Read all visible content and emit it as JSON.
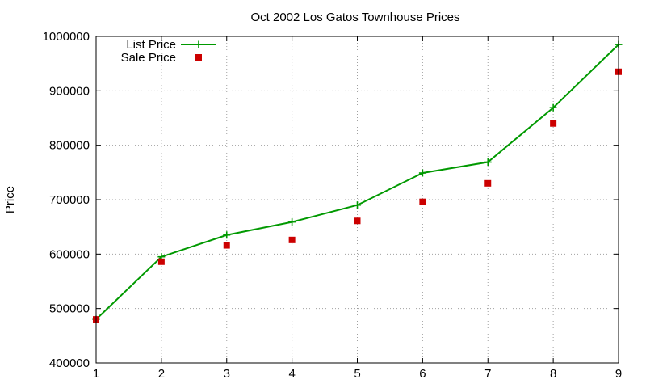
{
  "chart_data": {
    "type": "line",
    "title": "Oct 2002 Los Gatos Townhouse Prices",
    "xlabel": "",
    "ylabel": "Price",
    "x": [
      1,
      2,
      3,
      4,
      5,
      6,
      7,
      8,
      9
    ],
    "xlim": [
      1,
      9
    ],
    "ylim": [
      400000,
      1000000
    ],
    "xticks": [
      1,
      2,
      3,
      4,
      5,
      6,
      7,
      8,
      9
    ],
    "yticks": [
      400000,
      500000,
      600000,
      700000,
      800000,
      900000,
      1000000
    ],
    "grid": true,
    "legend_position": "top-left",
    "series": [
      {
        "name": "List Price",
        "style": "line-points",
        "marker": "plus",
        "color": "#009900",
        "values": [
          480000,
          595000,
          635000,
          659000,
          690000,
          749000,
          769000,
          869000,
          985000
        ]
      },
      {
        "name": "Sale Price",
        "style": "points",
        "marker": "square",
        "color": "#cc0000",
        "values": [
          480000,
          586000,
          616000,
          626000,
          661000,
          696000,
          730000,
          840000,
          935000
        ]
      }
    ]
  }
}
